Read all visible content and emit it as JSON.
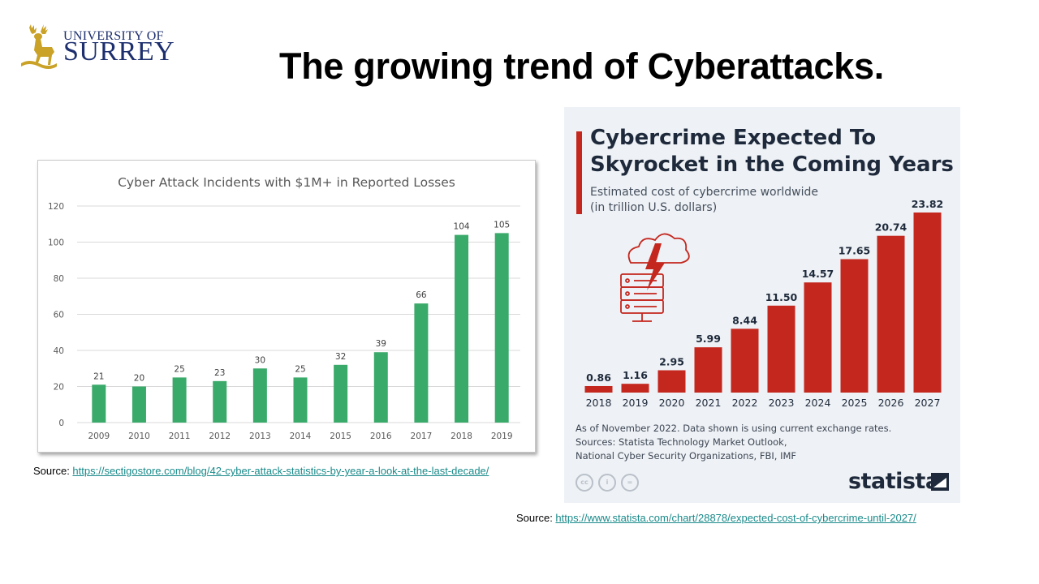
{
  "header": {
    "logo": {
      "line1": "UNIVERSITY OF",
      "line2": "SURREY"
    },
    "title": "The growing trend of Cyberattacks."
  },
  "colors": {
    "green_bar": "#3aaa6a",
    "red_bar": "#c4271e",
    "navy_text": "#1e2a3b",
    "link": "#1a8a8a"
  },
  "chart_data": [
    {
      "type": "bar",
      "title": "Cyber Attack Incidents with $1M+ in Reported Losses",
      "categories": [
        "2009",
        "2010",
        "2011",
        "2012",
        "2013",
        "2014",
        "2015",
        "2016",
        "2017",
        "2018",
        "2019"
      ],
      "values": [
        21,
        20,
        25,
        23,
        30,
        25,
        32,
        39,
        66,
        104,
        105
      ],
      "yticks": [
        "0",
        "20",
        "40",
        "60",
        "80",
        "100",
        "120"
      ],
      "ylim": [
        0,
        120
      ],
      "grid": true,
      "data_labels": true,
      "bar_color": "#3aaa6a"
    },
    {
      "type": "bar",
      "title": "Cybercrime Expected To Skyrocket in the Coming Years",
      "subtitle_line1": "Estimated cost of cybercrime worldwide",
      "subtitle_line2": "(in trillion U.S. dollars)",
      "categories": [
        "2018",
        "2019",
        "2020",
        "2021",
        "2022",
        "2023",
        "2024",
        "2025",
        "2026",
        "2027"
      ],
      "values": [
        0.86,
        1.16,
        2.95,
        5.99,
        8.44,
        11.5,
        14.57,
        17.65,
        20.74,
        23.82
      ],
      "value_labels": [
        "0.86",
        "1.16",
        "2.95",
        "5.99",
        "8.44",
        "11.50",
        "14.57",
        "17.65",
        "20.74",
        "23.82"
      ],
      "ylim": [
        0,
        23.82
      ],
      "grid": false,
      "data_labels": true,
      "bar_color": "#c4271e",
      "note_line1": "As of November 2022. Data shown is using current exchange rates.",
      "note_line2": "Sources: Statista Technology Market Outlook,",
      "note_line3": "National Cyber Security Organizations, FBI, IMF",
      "brand": "statista",
      "license_icons": [
        "cc-icon",
        "attribution-icon",
        "no-derivatives-icon"
      ]
    }
  ],
  "sources": {
    "left": {
      "label": "Source: ",
      "url": "https://sectigostore.com/blog/42-cyber-attack-statistics-by-year-a-look-at-the-last-decade/"
    },
    "right": {
      "label": "Source: ",
      "url": "https://www.statista.com/chart/28878/expected-cost-of-cybercrime-until-2027/"
    }
  }
}
